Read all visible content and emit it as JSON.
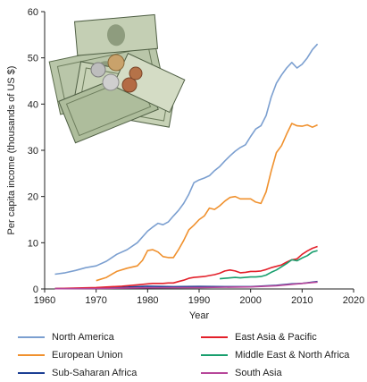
{
  "chart_data": {
    "type": "line",
    "title": "",
    "xlabel": "Year",
    "ylabel": "Per capita income (thousands of US $)",
    "xlim": [
      1960,
      2020
    ],
    "ylim": [
      0,
      60
    ],
    "x_ticks": [
      "1960",
      "1970",
      "1980",
      "1990",
      "2000",
      "2010",
      "2020"
    ],
    "y_ticks": [
      "0",
      "10",
      "20",
      "30",
      "40",
      "50",
      "60"
    ],
    "grid": false,
    "legend_position": "bottom",
    "series": [
      {
        "name": "North America",
        "color": "#7b9fd0",
        "x": [
          1962,
          1964,
          1966,
          1968,
          1970,
          1972,
          1974,
          1976,
          1978,
          1980,
          1981,
          1982,
          1983,
          1984,
          1985,
          1986,
          1987,
          1988,
          1989,
          1990,
          1991,
          1992,
          1993,
          1994,
          1995,
          1996,
          1997,
          1998,
          1999,
          2000,
          2001,
          2002,
          2003,
          2004,
          2005,
          2006,
          2007,
          2008,
          2009,
          2010,
          2011,
          2012,
          2013
        ],
        "y": [
          3.2,
          3.5,
          4.0,
          4.6,
          5.0,
          6.0,
          7.5,
          8.5,
          10.0,
          12.5,
          13.4,
          14.2,
          13.9,
          14.5,
          15.8,
          17.0,
          18.5,
          20.5,
          23.0,
          23.6,
          24.0,
          24.5,
          25.6,
          26.5,
          27.7,
          28.8,
          29.8,
          30.6,
          31.2,
          33.0,
          34.6,
          35.3,
          37.5,
          41.5,
          44.5,
          46.3,
          47.8,
          49.0,
          47.8,
          48.6,
          50.0,
          51.8,
          53.0
        ]
      },
      {
        "name": "European Union",
        "color": "#f0912e",
        "x": [
          1970,
          1972,
          1974,
          1976,
          1978,
          1979,
          1980,
          1981,
          1982,
          1983,
          1984,
          1985,
          1986,
          1987,
          1988,
          1989,
          1990,
          1991,
          1992,
          1993,
          1994,
          1995,
          1996,
          1997,
          1998,
          1999,
          2000,
          2001,
          2002,
          2003,
          2004,
          2005,
          2006,
          2007,
          2008,
          2009,
          2010,
          2011,
          2012,
          2013
        ],
        "y": [
          1.8,
          2.5,
          3.8,
          4.5,
          5.0,
          6.2,
          8.3,
          8.5,
          8.0,
          7.0,
          6.8,
          6.8,
          8.5,
          10.5,
          12.8,
          13.8,
          15.0,
          15.8,
          17.5,
          17.2,
          18.0,
          19.0,
          19.8,
          20.0,
          19.5,
          19.5,
          19.5,
          18.8,
          18.5,
          21.0,
          25.5,
          29.5,
          31.0,
          33.5,
          35.8,
          35.3,
          35.2,
          35.5,
          35.0,
          35.5
        ]
      },
      {
        "name": "Sub-Saharan Africa",
        "color": "#1c3f94",
        "x": [
          1962,
          1970,
          1975,
          1980,
          1985,
          1990,
          1995,
          2000,
          2005,
          2008,
          2010,
          2013
        ],
        "y": [
          0.1,
          0.15,
          0.35,
          0.6,
          0.5,
          0.55,
          0.5,
          0.5,
          0.8,
          1.1,
          1.2,
          1.6
        ]
      },
      {
        "name": "East Asia & Pacific",
        "color": "#e3202a",
        "x": [
          1962,
          1970,
          1975,
          1978,
          1980,
          1981,
          1982,
          1983,
          1984,
          1985,
          1986,
          1987,
          1988,
          1989,
          1990,
          1991,
          1992,
          1993,
          1994,
          1995,
          1996,
          1997,
          1998,
          1999,
          2000,
          2001,
          2002,
          2003,
          2004,
          2005,
          2006,
          2007,
          2008,
          2009,
          2010,
          2011,
          2012,
          2013
        ],
        "y": [
          0.1,
          0.3,
          0.6,
          0.9,
          1.1,
          1.2,
          1.2,
          1.2,
          1.3,
          1.3,
          1.6,
          1.9,
          2.3,
          2.5,
          2.6,
          2.7,
          2.9,
          3.1,
          3.4,
          3.9,
          4.1,
          3.9,
          3.5,
          3.6,
          3.8,
          3.8,
          3.9,
          4.2,
          4.6,
          4.9,
          5.2,
          5.8,
          6.3,
          6.5,
          7.5,
          8.2,
          8.8,
          9.2
        ]
      },
      {
        "name": "Middle East & North Africa",
        "color": "#199f6e",
        "x": [
          1994,
          1995,
          1996,
          1997,
          1998,
          1999,
          2000,
          2001,
          2002,
          2003,
          2004,
          2005,
          2006,
          2007,
          2008,
          2009,
          2010,
          2011,
          2012,
          2013
        ],
        "y": [
          2.2,
          2.3,
          2.4,
          2.5,
          2.4,
          2.5,
          2.6,
          2.6,
          2.7,
          3.0,
          3.6,
          4.1,
          4.8,
          5.5,
          6.3,
          6.1,
          6.7,
          7.2,
          8.0,
          8.3
        ]
      },
      {
        "name": "South Asia",
        "color": "#b7479a",
        "x": [
          1962,
          1970,
          1980,
          1990,
          2000,
          2005,
          2010,
          2013
        ],
        "y": [
          0.05,
          0.1,
          0.25,
          0.3,
          0.45,
          0.7,
          1.2,
          1.5
        ]
      }
    ]
  }
}
